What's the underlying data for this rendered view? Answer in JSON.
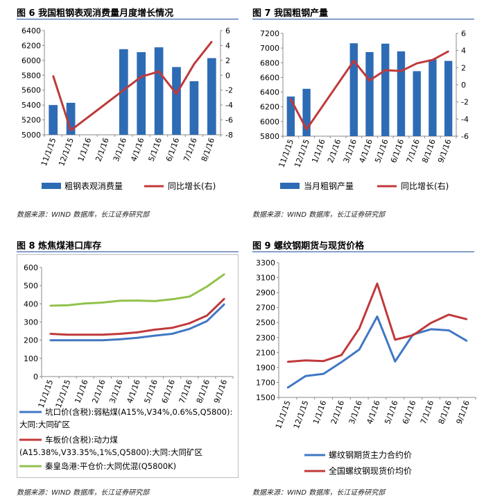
{
  "source_text": "数据来源：WIND 数据库，长江证券研究部",
  "charts": {
    "fig6": {
      "title": "图 6 我国粗钢表观消费量月度增长情况",
      "legend": [
        "粗钢表观消费量",
        "同比增长(右)"
      ],
      "colors": {
        "bar": "#2e6bb5",
        "line": "#c0393b"
      }
    },
    "fig7": {
      "title": "图 7 我国粗钢产量",
      "legend": [
        "当月粗钢产量",
        "同比增长(右)"
      ],
      "colors": {
        "bar": "#2e6bb5",
        "line": "#c0393b"
      }
    },
    "fig8": {
      "title": "图 8 炼焦煤港口库存",
      "legend": [
        "坑口价(含税):弱粘煤(A15%,V34%,0.6%S,Q5800):大同:大同矿区",
        "车板价(含税):动力煤(A15.38%,V33.35%,1%S,Q5800):大同:大同矿区",
        "秦皇岛港:平仓价:大同优混(Q5800K)"
      ],
      "colors": [
        "#3f77c4",
        "#c0393b",
        "#92c24c"
      ]
    },
    "fig9": {
      "title": "图 9 螺纹钢期货与现货价格",
      "legend": [
        "螺纹钢期货主力合约价",
        "全国螺纹钢现货价均价"
      ],
      "colors": [
        "#3f77c4",
        "#c0393b"
      ]
    }
  },
  "chart_data": [
    {
      "type": "bar",
      "title": "图 6 我国粗钢表观消费量月度增长情况",
      "categories": [
        "11/1/15",
        "12/1/15",
        "1/1/16",
        "2/1/16",
        "3/1/16",
        "4/1/16",
        "5/1/16",
        "6/1/16",
        "7/1/16",
        "8/1/16"
      ],
      "series": [
        {
          "name": "粗钢表观消费量",
          "type": "bar",
          "axis": "left",
          "values": [
            5400,
            5430,
            null,
            null,
            6150,
            6110,
            6175,
            5910,
            5720,
            6030
          ]
        },
        {
          "name": "同比增长(右)",
          "type": "line",
          "axis": "right",
          "values": [
            -0.1,
            -7.4,
            null,
            null,
            -2.0,
            -0.2,
            0.5,
            -2.5,
            1.5,
            4.5
          ]
        }
      ],
      "ylim": [
        5000,
        6400
      ],
      "yticks": [
        5000,
        5200,
        5400,
        5600,
        5800,
        6000,
        6200,
        6400
      ],
      "y2lim": [
        -8,
        6
      ],
      "y2ticks": [
        -8,
        -6,
        -4,
        -2,
        0,
        2,
        4,
        6
      ],
      "legend_position": "bottom"
    },
    {
      "type": "bar",
      "title": "图 7 我国粗钢产量",
      "categories": [
        "11/1/15",
        "12/1/15",
        "1/1/16",
        "2/1/16",
        "3/1/16",
        "4/1/16",
        "5/1/16",
        "6/1/16",
        "7/1/16",
        "8/1/16",
        "9/1/16"
      ],
      "series": [
        {
          "name": "当月粗钢产量",
          "type": "bar",
          "axis": "left",
          "values": [
            6340,
            6445,
            null,
            null,
            7065,
            6945,
            7060,
            6955,
            6685,
            6845,
            6825
          ]
        },
        {
          "name": "同比增长(右)",
          "type": "line",
          "axis": "right",
          "values": [
            -1.7,
            -5.2,
            null,
            null,
            2.8,
            0.5,
            1.7,
            1.6,
            2.5,
            2.9,
            3.9
          ]
        }
      ],
      "ylim": [
        5800,
        7200
      ],
      "yticks": [
        5800,
        6000,
        6200,
        6400,
        6600,
        6800,
        7000,
        7200
      ],
      "y2lim": [
        -6,
        6
      ],
      "y2ticks": [
        -6,
        -4,
        -2,
        0,
        2,
        4,
        6
      ],
      "legend_position": "bottom"
    },
    {
      "type": "line",
      "title": "图 8 炼焦煤港口库存",
      "categories": [
        "11/1/15",
        "12/1/15",
        "1/1/16",
        "2/1/16",
        "3/1/16",
        "4/1/16",
        "5/1/16",
        "6/1/16",
        "7/1/16",
        "8/1/16",
        "9/1/16"
      ],
      "series": [
        {
          "name": "坑口价(含税):弱粘煤(A15%,V34%,0.6%S,Q5800):大同:大同矿区",
          "values": [
            200,
            200,
            200,
            200,
            205,
            213,
            225,
            235,
            262,
            305,
            398
          ]
        },
        {
          "name": "车板价(含税):动力煤(A15.38%,V33.35%,1%S,Q5800):大同:大同矿区",
          "values": [
            235,
            230,
            230,
            230,
            235,
            243,
            258,
            268,
            293,
            335,
            428
          ]
        },
        {
          "name": "秦皇岛港:平仓价:大同优混(Q5800K)",
          "values": [
            390,
            392,
            402,
            407,
            417,
            418,
            415,
            425,
            440,
            495,
            563
          ]
        }
      ],
      "ylim": [
        0,
        600
      ],
      "yticks": [
        0,
        100,
        200,
        300,
        400,
        500,
        600
      ],
      "legend_position": "bottom"
    },
    {
      "type": "line",
      "title": "图 9 螺纹钢期货与现货价格",
      "categories": [
        "11/1/15",
        "12/1/15",
        "1/1/16",
        "2/1/16",
        "3/1/16",
        "4/1/16",
        "5/1/16",
        "6/1/16",
        "7/1/16",
        "8/1/16",
        "9/1/16"
      ],
      "series": [
        {
          "name": "螺纹钢期货主力合约价",
          "values": [
            1630,
            1785,
            1815,
            1970,
            2140,
            2580,
            1980,
            2340,
            2410,
            2395,
            2255
          ]
        },
        {
          "name": "全国螺纹钢现货价均价",
          "values": [
            1975,
            1995,
            1985,
            2065,
            2420,
            3020,
            2270,
            2330,
            2495,
            2605,
            2545
          ]
        }
      ],
      "ylim": [
        1500,
        3300
      ],
      "yticks": [
        1500,
        1700,
        1900,
        2100,
        2300,
        2500,
        2700,
        2900,
        3100,
        3300
      ],
      "legend_position": "bottom"
    }
  ]
}
